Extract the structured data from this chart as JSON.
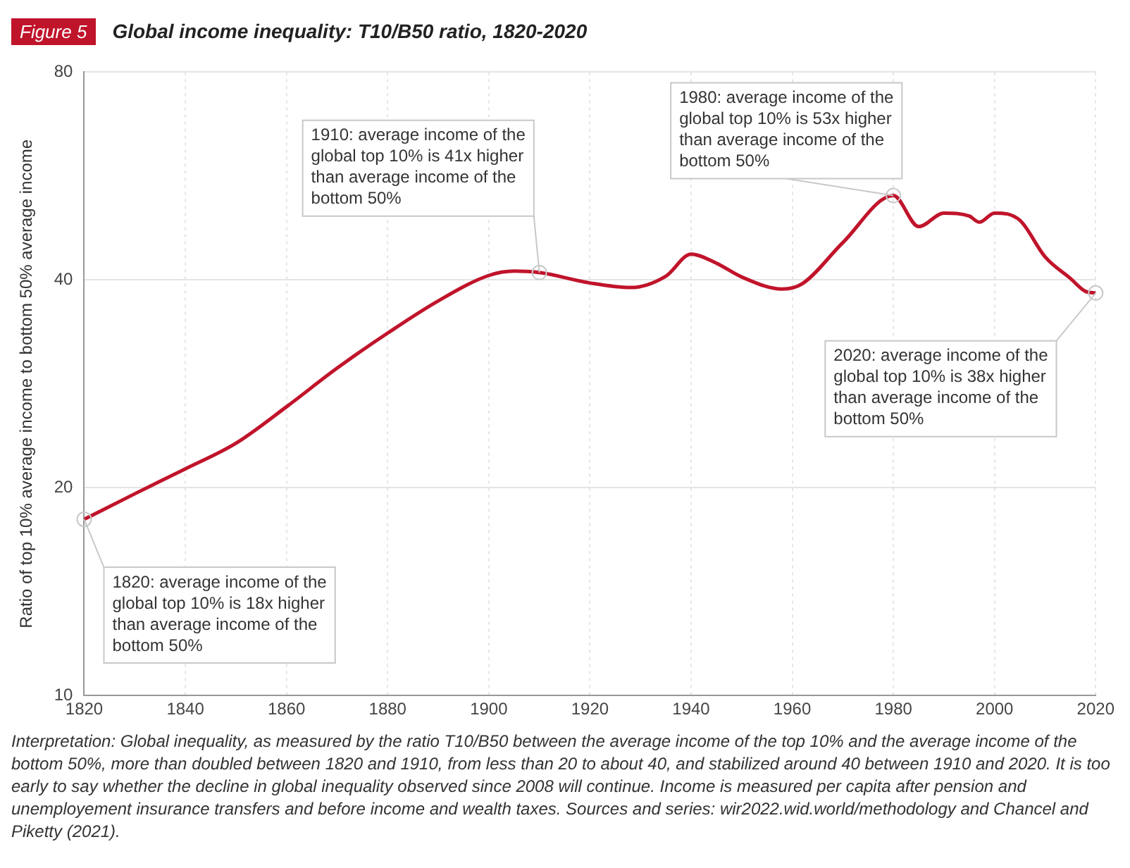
{
  "chart_data": {
    "type": "line",
    "subtitle": "Figure 5",
    "title": "Global income inequality: T10/B50 ratio, 1820-2020",
    "ylabel": "Ratio of top 10% average income to bottom 50% average income",
    "x": [
      1820,
      1830,
      1840,
      1850,
      1860,
      1870,
      1880,
      1890,
      1900,
      1905,
      1910,
      1920,
      1928,
      1935,
      1940,
      1945,
      1950,
      1958,
      1962,
      1970,
      1980,
      1985,
      1990,
      1995,
      1997,
      2000,
      2005,
      2010,
      2015,
      2018,
      2020
    ],
    "series": [
      {
        "color": "#c0142b",
        "values": [
          18,
          19.6,
          21.3,
          23.2,
          26.2,
          29.8,
          33.5,
          37.3,
          40.6,
          41.2,
          41,
          39.6,
          39,
          40.5,
          43.6,
          42.3,
          40.4,
          38.8,
          39.5,
          45.3,
          53,
          47.8,
          50,
          49.5,
          48.5,
          50,
          48.8,
          43.2,
          40.2,
          38.5,
          38.3
        ]
      }
    ],
    "xlim": [
      1820,
      2020
    ],
    "xticks": [
      1820,
      1840,
      1860,
      1880,
      1900,
      1920,
      1940,
      1960,
      1980,
      2000,
      2020
    ],
    "ylim": [
      10,
      80
    ],
    "yticks": [
      10,
      20,
      40,
      80
    ],
    "log": "y",
    "grid": true,
    "marker": "none",
    "line_style": "solid",
    "annotations": [
      {
        "text": "1820: average income of the global top 10% is 18x higher than average income of the bottom 50%",
        "x": 1820,
        "y": 18
      },
      {
        "text": "1910: average income of the global top 10% is 41x higher than average income of the bottom 50%",
        "x": 1910,
        "y": 41
      },
      {
        "text": "1980: average income of the global top 10% is 53x higher than average income of the bottom 50%",
        "x": 1980,
        "y": 53
      },
      {
        "text": "2020: average income of the global top 10% is 38x higher than average income of the bottom 50%",
        "x": 2020,
        "y": 38.3
      },
      "Interpretation: Global inequality, as measured by the ratio T10/B50 between the average income of the top 10% and the average income of the bottom 50%, more than doubled between 1820 and 1910, from less than 20 to about 40, and stabilized around 40 between 1910 and 2020. It is too early to say whether the decline in global inequality observed since 2008 will continue. Income is measured per capita after pension and unemployement insurance transfers and before income and wealth taxes. Sources and series: wir2022.wid.world/methodology and Chancel and Piketty (2021)."
    ]
  }
}
